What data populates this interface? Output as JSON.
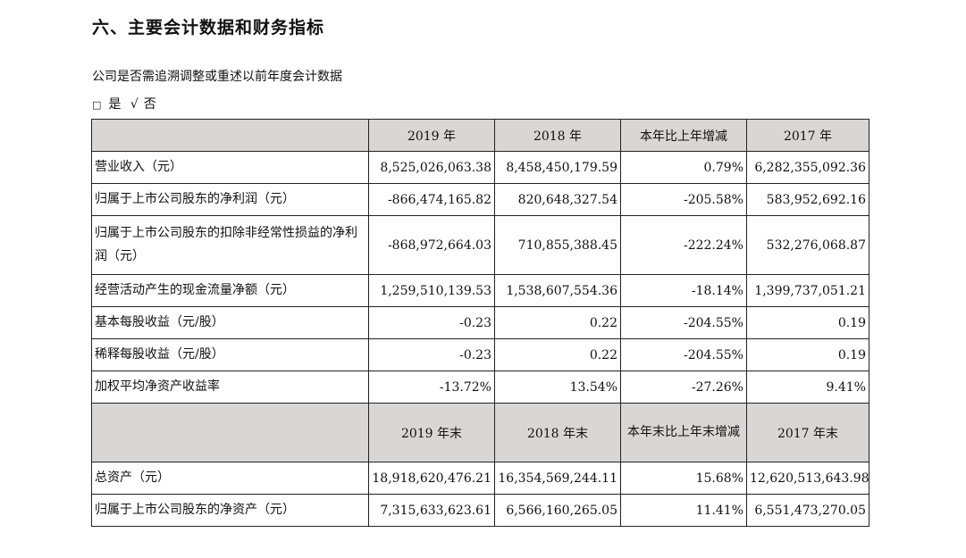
{
  "heading": "六、主要会计数据和财务指标",
  "note": "公司是否需追溯调整或重述以前年度会计数据",
  "choice": {
    "box": "□",
    "yes": "是",
    "check": "√",
    "no": "否"
  },
  "table": {
    "header1": [
      "",
      "2019 年",
      "2018 年",
      "本年比上年增减",
      "2017 年"
    ],
    "rows1": [
      {
        "label": "营业收入（元）",
        "v2019": "8,525,026,063.38",
        "v2018": "8,458,450,179.59",
        "change": "0.79%",
        "v2017": "6,282,355,092.36"
      },
      {
        "label": "归属于上市公司股东的净利润（元）",
        "v2019": "-866,474,165.82",
        "v2018": "820,648,327.54",
        "change": "-205.58%",
        "v2017": "583,952,692.16"
      },
      {
        "label": "归属于上市公司股东的扣除非经常性损益的净利润（元）",
        "v2019": "-868,972,664.03",
        "v2018": "710,855,388.45",
        "change": "-222.24%",
        "v2017": "532,276,068.87"
      },
      {
        "label": "经营活动产生的现金流量净额（元）",
        "v2019": "1,259,510,139.53",
        "v2018": "1,538,607,554.36",
        "change": "-18.14%",
        "v2017": "1,399,737,051.21"
      },
      {
        "label": "基本每股收益（元/股）",
        "v2019": "-0.23",
        "v2018": "0.22",
        "change": "-204.55%",
        "v2017": "0.19"
      },
      {
        "label": "稀释每股收益（元/股）",
        "v2019": "-0.23",
        "v2018": "0.22",
        "change": "-204.55%",
        "v2017": "0.19"
      },
      {
        "label": "加权平均净资产收益率",
        "v2019": "-13.72%",
        "v2018": "13.54%",
        "change": "-27.26%",
        "v2017": "9.41%"
      }
    ],
    "header2": [
      "",
      "2019 年末",
      "2018 年末",
      "本年末比上年末增减",
      "2017 年末"
    ],
    "rows2": [
      {
        "label": "总资产（元）",
        "v2019": "18,918,620,476.21",
        "v2018": "16,354,569,244.11",
        "change": "15.68%",
        "v2017": "12,620,513,643.98"
      },
      {
        "label": "归属于上市公司股东的净资产（元）",
        "v2019": "7,315,633,623.61",
        "v2018": "6,566,160,265.05",
        "change": "11.41%",
        "v2017": "6,551,473,270.05"
      }
    ]
  }
}
